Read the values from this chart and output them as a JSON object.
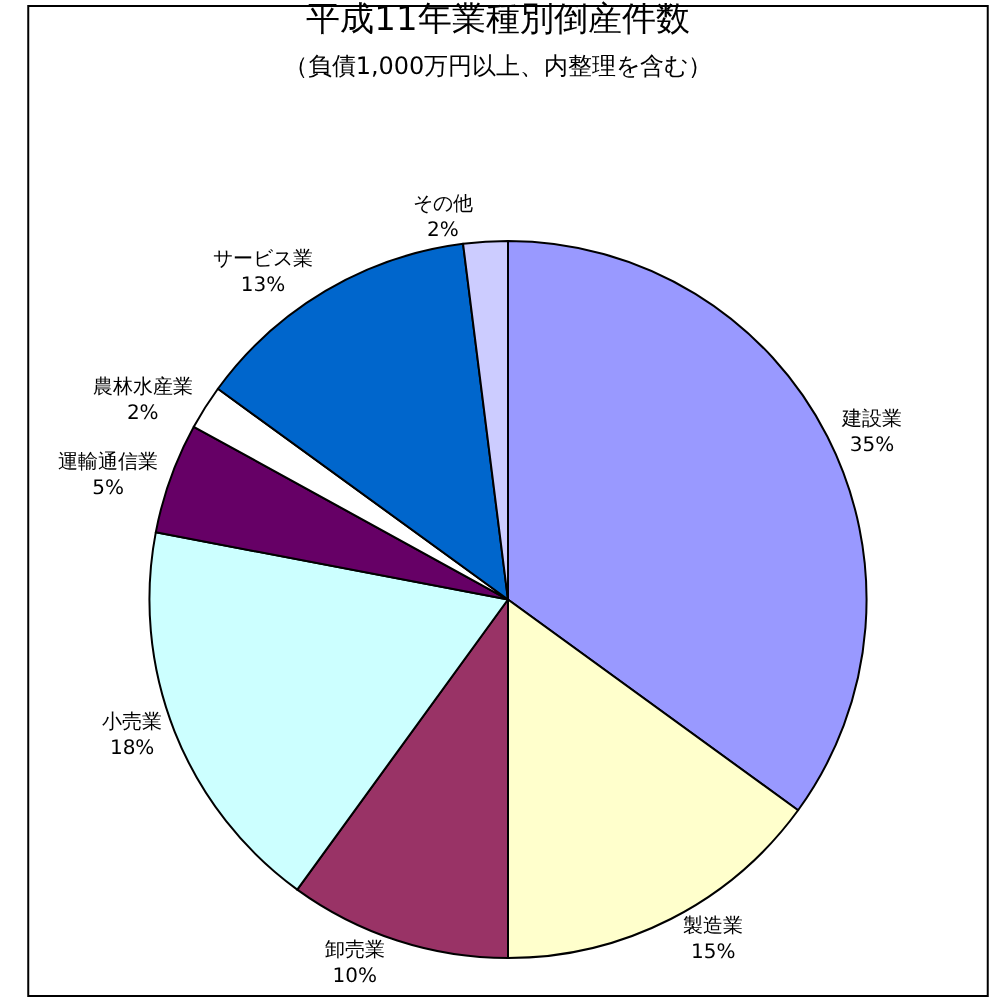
{
  "chart_data": {
    "type": "pie",
    "title": "平成11年業種別倒産件数",
    "subtitle": "（負債1,000万円以上、内整理を含む）",
    "categories": [
      "建設業",
      "製造業",
      "卸売業",
      "小売業",
      "運輸通信業",
      "農林水産業",
      "サービス業",
      "その他"
    ],
    "values": [
      35,
      15,
      10,
      18,
      5,
      2,
      13,
      2
    ],
    "value_labels": [
      "35%",
      "15%",
      "10%",
      "18%",
      "5%",
      "2%",
      "13%",
      "2%"
    ],
    "colors": [
      "#9999ff",
      "#ffffcc",
      "#993366",
      "#ccffff",
      "#660066",
      "#ffffff",
      "#0066cc",
      "#ccccff"
    ],
    "legend": false
  }
}
